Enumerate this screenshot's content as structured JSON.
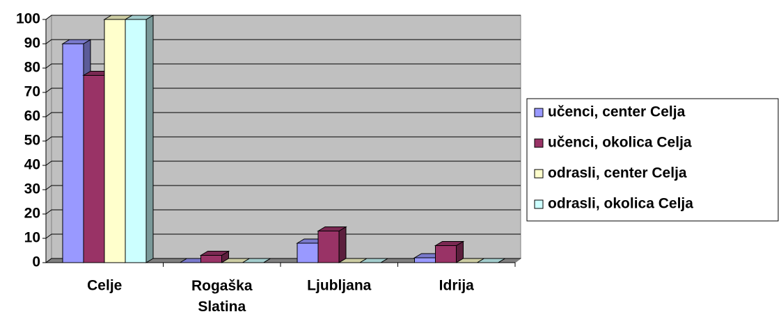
{
  "chart_data": {
    "type": "bar3d",
    "categories": [
      "Celje",
      "Rogaška Slatina",
      "Ljubljana",
      "Idrija"
    ],
    "series": [
      {
        "name": "učenci, center Celja",
        "color": "#9999ff",
        "values": [
          90,
          0,
          8,
          2
        ]
      },
      {
        "name": "učenci, okolica Celja",
        "color": "#993366",
        "values": [
          77,
          3,
          13,
          7
        ]
      },
      {
        "name": "odrasli, center Celja",
        "color": "#ffffcc",
        "values": [
          100,
          0,
          0,
          0
        ]
      },
      {
        "name": "odrasli, okolica Celja",
        "color": "#ccffff",
        "values": [
          100,
          0,
          0,
          0
        ]
      }
    ],
    "ylim": [
      0,
      100
    ],
    "yticks": [
      0,
      10,
      20,
      30,
      40,
      50,
      60,
      70,
      80,
      90,
      100
    ],
    "grid": true,
    "legend": "right"
  }
}
